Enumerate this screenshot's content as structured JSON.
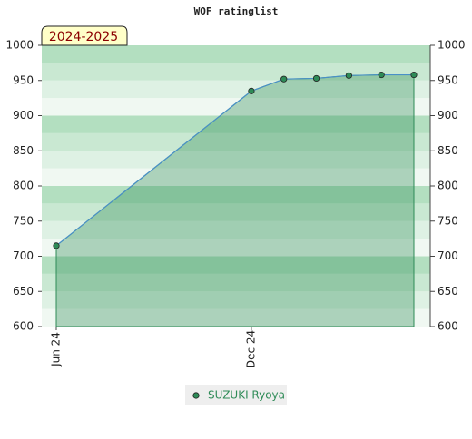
{
  "chart_data": {
    "type": "line",
    "title": "WOF ratinglist",
    "annotation": "2024-2025",
    "x": [
      "2024-06",
      "2024-12",
      "2025-01",
      "2025-02",
      "2025-03",
      "2025-04",
      "2025-05"
    ],
    "series": [
      {
        "name": "SUZUKI Ryoya",
        "color": "#2e8b57",
        "values": [
          715,
          935,
          952,
          953,
          957,
          958,
          958
        ]
      }
    ],
    "xticks": [
      {
        "value": "2024-06",
        "label": "Jun 24"
      },
      {
        "value": "2024-12",
        "label": "Dec 24"
      }
    ],
    "ylim": [
      600,
      1000
    ],
    "yticks": [
      600,
      650,
      700,
      750,
      800,
      850,
      900,
      950,
      1000
    ],
    "y2lim": [
      600,
      1000
    ],
    "y2ticks": [
      600,
      650,
      700,
      750,
      800,
      850,
      900,
      950,
      1000
    ]
  }
}
